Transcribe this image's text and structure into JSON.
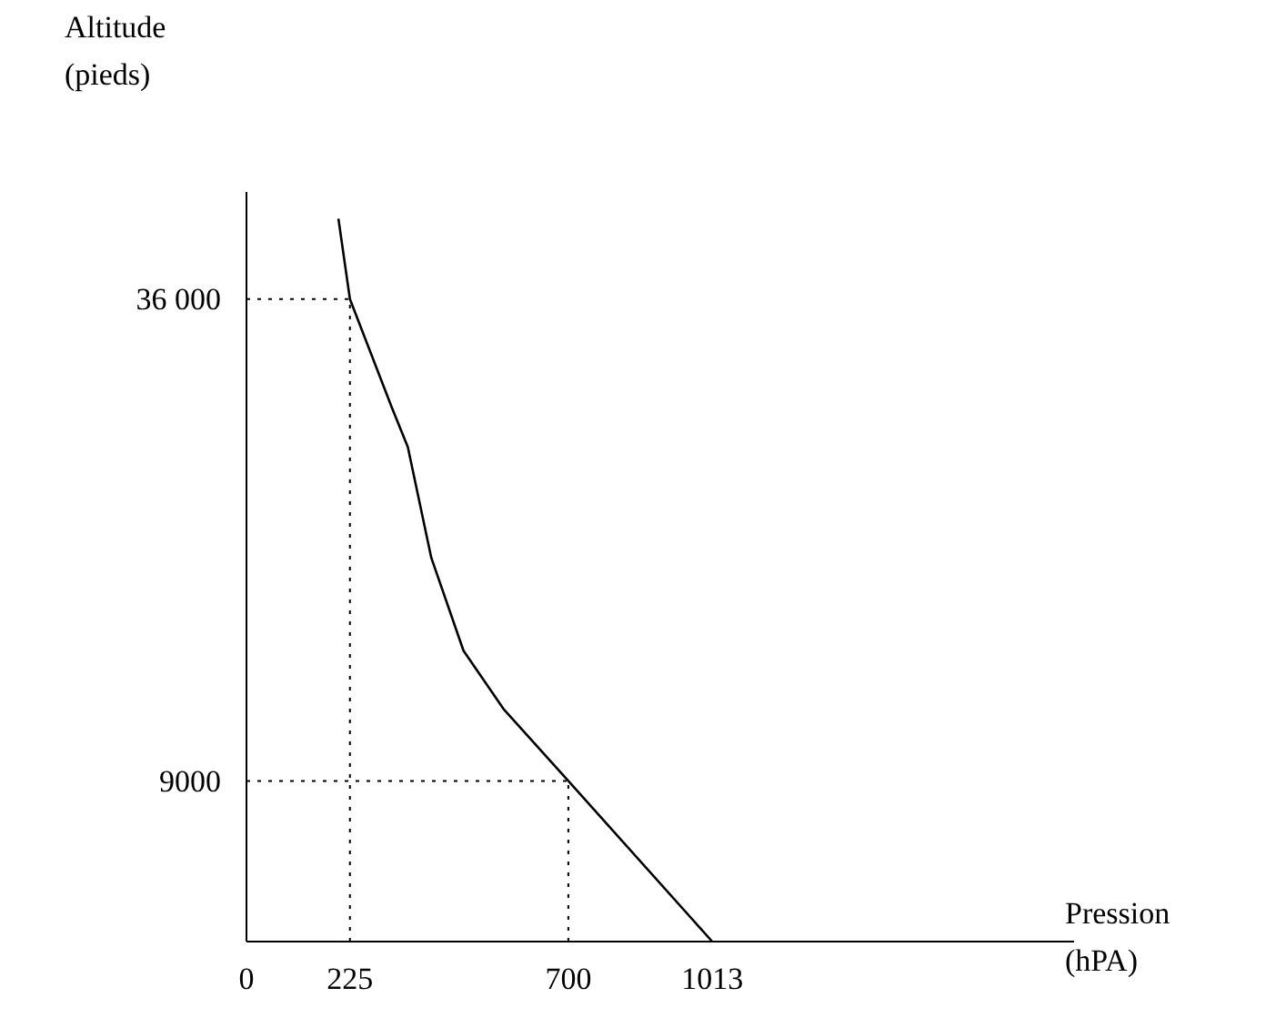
{
  "chart_data": {
    "type": "line",
    "xlabel": "Pression\n(hPA)",
    "ylabel": "Altitude\n(pieds)",
    "x": [
      200,
      225,
      315,
      351,
      402,
      472,
      560,
      700,
      1013
    ],
    "series": [
      {
        "color": "#000000",
        "values": [
          40500,
          36000,
          30000,
          27700,
          21500,
          16300,
          13000,
          9000,
          0
        ]
      }
    ],
    "xlim": [
      0,
      1800
    ],
    "ylim": [
      0,
      42000
    ],
    "xticks": [
      0,
      225,
      700,
      1013
    ],
    "yticks": [
      9000,
      {
        "value": 36000,
        "label": "36 000"
      }
    ],
    "ref_lines": [
      {
        "axis": "x",
        "value": 225,
        "line_style": "dotted"
      },
      {
        "axis": "y",
        "value": 36000,
        "line_style": "dotted"
      },
      {
        "axis": "x",
        "value": 700,
        "line_style": "dotted"
      },
      {
        "axis": "y",
        "value": 9000,
        "line_style": "dotted"
      }
    ],
    "grid": false,
    "marker": "none",
    "line_style": "solid"
  }
}
